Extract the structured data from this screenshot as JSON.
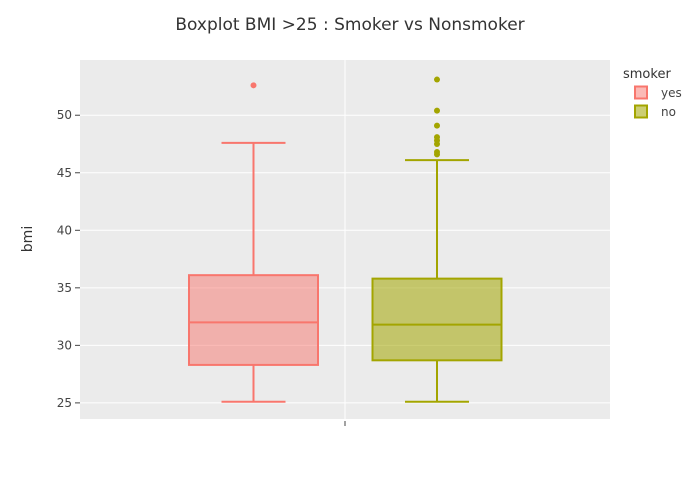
{
  "chart_data": {
    "type": "box",
    "title": "Boxplot BMI >25 : Smoker vs Nonsmoker",
    "xlabel": "",
    "ylabel": "bmi",
    "ylim": [
      23.6,
      54.8
    ],
    "yticks": [
      25,
      30,
      35,
      40,
      45,
      50
    ],
    "grid": true,
    "legend": {
      "title": "smoker",
      "placement": "top-right"
    },
    "series": [
      {
        "name": "yes",
        "color": "#F8766D",
        "fill": "rgba(248,118,109,0.5)",
        "q1": 28.3,
        "median": 32.0,
        "q3": 36.1,
        "lower_whisker": 25.1,
        "upper_whisker": 47.6,
        "outliers": [
          52.6
        ]
      },
      {
        "name": "no",
        "color": "#A3A500",
        "fill": "rgba(163,165,0,0.55)",
        "q1": 28.7,
        "median": 31.8,
        "q3": 35.8,
        "lower_whisker": 25.1,
        "upper_whisker": 46.1,
        "outliers": [
          46.6,
          46.8,
          47.5,
          47.8,
          48.1,
          49.1,
          50.4,
          53.1
        ]
      }
    ]
  }
}
